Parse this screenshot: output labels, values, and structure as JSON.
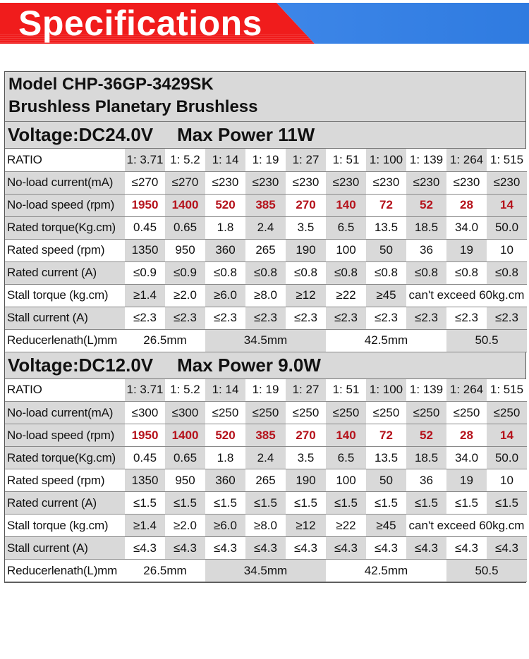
{
  "banner": {
    "title": "Specifications"
  },
  "model": {
    "line1": "Model CHP-36GP-3429SK",
    "line2": "Brushless Planetary Brushless"
  },
  "sections": [
    {
      "voltage": "Voltage:DC24.0V",
      "max_power": "Max Power 11W",
      "rows": {
        "ratio": {
          "label": "RATIO",
          "values": [
            "1: 3.71",
            "1: 5.2",
            "1: 14",
            "1: 19",
            "1: 27",
            "1: 51",
            "1: 100",
            "1: 139",
            "1: 264",
            "1: 515"
          ]
        },
        "noload_current": {
          "label": "No-load current(mA)",
          "values": [
            "≤270",
            "≤270",
            "≤230",
            "≤230",
            "≤230",
            "≤230",
            "≤230",
            "≤230",
            "≤230",
            "≤230"
          ]
        },
        "noload_speed": {
          "label": "No-load speed (rpm)",
          "values": [
            "1950",
            "1400",
            "520",
            "385",
            "270",
            "140",
            "72",
            "52",
            "28",
            "14"
          ]
        },
        "rated_torque": {
          "label": "Rated torque(Kg.cm)",
          "values": [
            "0.45",
            "0.65",
            "1.8",
            "2.4",
            "3.5",
            "6.5",
            "13.5",
            "18.5",
            "34.0",
            "50.0"
          ]
        },
        "rated_speed": {
          "label": "Rated speed (rpm)",
          "values": [
            "1350",
            "950",
            "360",
            "265",
            "190",
            "100",
            "50",
            "36",
            "19",
            "10"
          ]
        },
        "rated_current": {
          "label": "Rated current (A)",
          "values": [
            "≤0.9",
            "≤0.9",
            "≤0.8",
            "≤0.8",
            "≤0.8",
            "≤0.8",
            "≤0.8",
            "≤0.8",
            "≤0.8",
            "≤0.8"
          ]
        },
        "stall_torque": {
          "label": "Stall torque (kg.cm)",
          "values": [
            "≥1.4",
            "≥2.0",
            "≥6.0",
            "≥8.0",
            "≥12",
            "≥22",
            "≥45"
          ],
          "note": "can't exceed 60kg.cm"
        },
        "stall_current": {
          "label": "Stall current (A)",
          "values": [
            "≤2.3",
            "≤2.3",
            "≤2.3",
            "≤2.3",
            "≤2.3",
            "≤2.3",
            "≤2.3",
            "≤2.3",
            "≤2.3",
            "≤2.3"
          ]
        },
        "reducer_length": {
          "label": "Reducerlenath(L)mm",
          "values": [
            "26.5mm",
            "34.5mm",
            "42.5mm",
            "50.5"
          ]
        }
      }
    },
    {
      "voltage": "Voltage:DC12.0V",
      "max_power": "Max Power 9.0W",
      "rows": {
        "ratio": {
          "label": "RATIO",
          "values": [
            "1: 3.71",
            "1: 5.2",
            "1: 14",
            "1: 19",
            "1: 27",
            "1: 51",
            "1: 100",
            "1: 139",
            "1: 264",
            "1: 515"
          ]
        },
        "noload_current": {
          "label": "No-load current(mA)",
          "values": [
            "≤300",
            "≤300",
            "≤250",
            "≤250",
            "≤250",
            "≤250",
            "≤250",
            "≤250",
            "≤250",
            "≤250"
          ]
        },
        "noload_speed": {
          "label": "No-load speed (rpm)",
          "values": [
            "1950",
            "1400",
            "520",
            "385",
            "270",
            "140",
            "72",
            "52",
            "28",
            "14"
          ]
        },
        "rated_torque": {
          "label": "Rated torque(Kg.cm)",
          "values": [
            "0.45",
            "0.65",
            "1.8",
            "2.4",
            "3.5",
            "6.5",
            "13.5",
            "18.5",
            "34.0",
            "50.0"
          ]
        },
        "rated_speed": {
          "label": "Rated speed (rpm)",
          "values": [
            "1350",
            "950",
            "360",
            "265",
            "190",
            "100",
            "50",
            "36",
            "19",
            "10"
          ]
        },
        "rated_current": {
          "label": "Rated current (A)",
          "values": [
            "≤1.5",
            "≤1.5",
            "≤1.5",
            "≤1.5",
            "≤1.5",
            "≤1.5",
            "≤1.5",
            "≤1.5",
            "≤1.5",
            "≤1.5"
          ]
        },
        "stall_torque": {
          "label": "Stall torque (kg.cm)",
          "values": [
            "≥1.4",
            "≥2.0",
            "≥6.0",
            "≥8.0",
            "≥12",
            "≥22",
            "≥45"
          ],
          "note": "can't exceed 60kg.cm"
        },
        "stall_current": {
          "label": "Stall current (A)",
          "values": [
            "≤4.3",
            "≤4.3",
            "≤4.3",
            "≤4.3",
            "≤4.3",
            "≤4.3",
            "≤4.3",
            "≤4.3",
            "≤4.3",
            "≤4.3"
          ]
        },
        "reducer_length": {
          "label": "Reducerlenath(L)mm",
          "values": [
            "26.5mm",
            "34.5mm",
            "42.5mm",
            "50.5"
          ]
        }
      }
    }
  ],
  "colors": {
    "banner_red": "#f01c1c",
    "banner_blue": "#3d86e8",
    "row_gray": "#d9d9d9",
    "speed_red": "#b5121b"
  }
}
